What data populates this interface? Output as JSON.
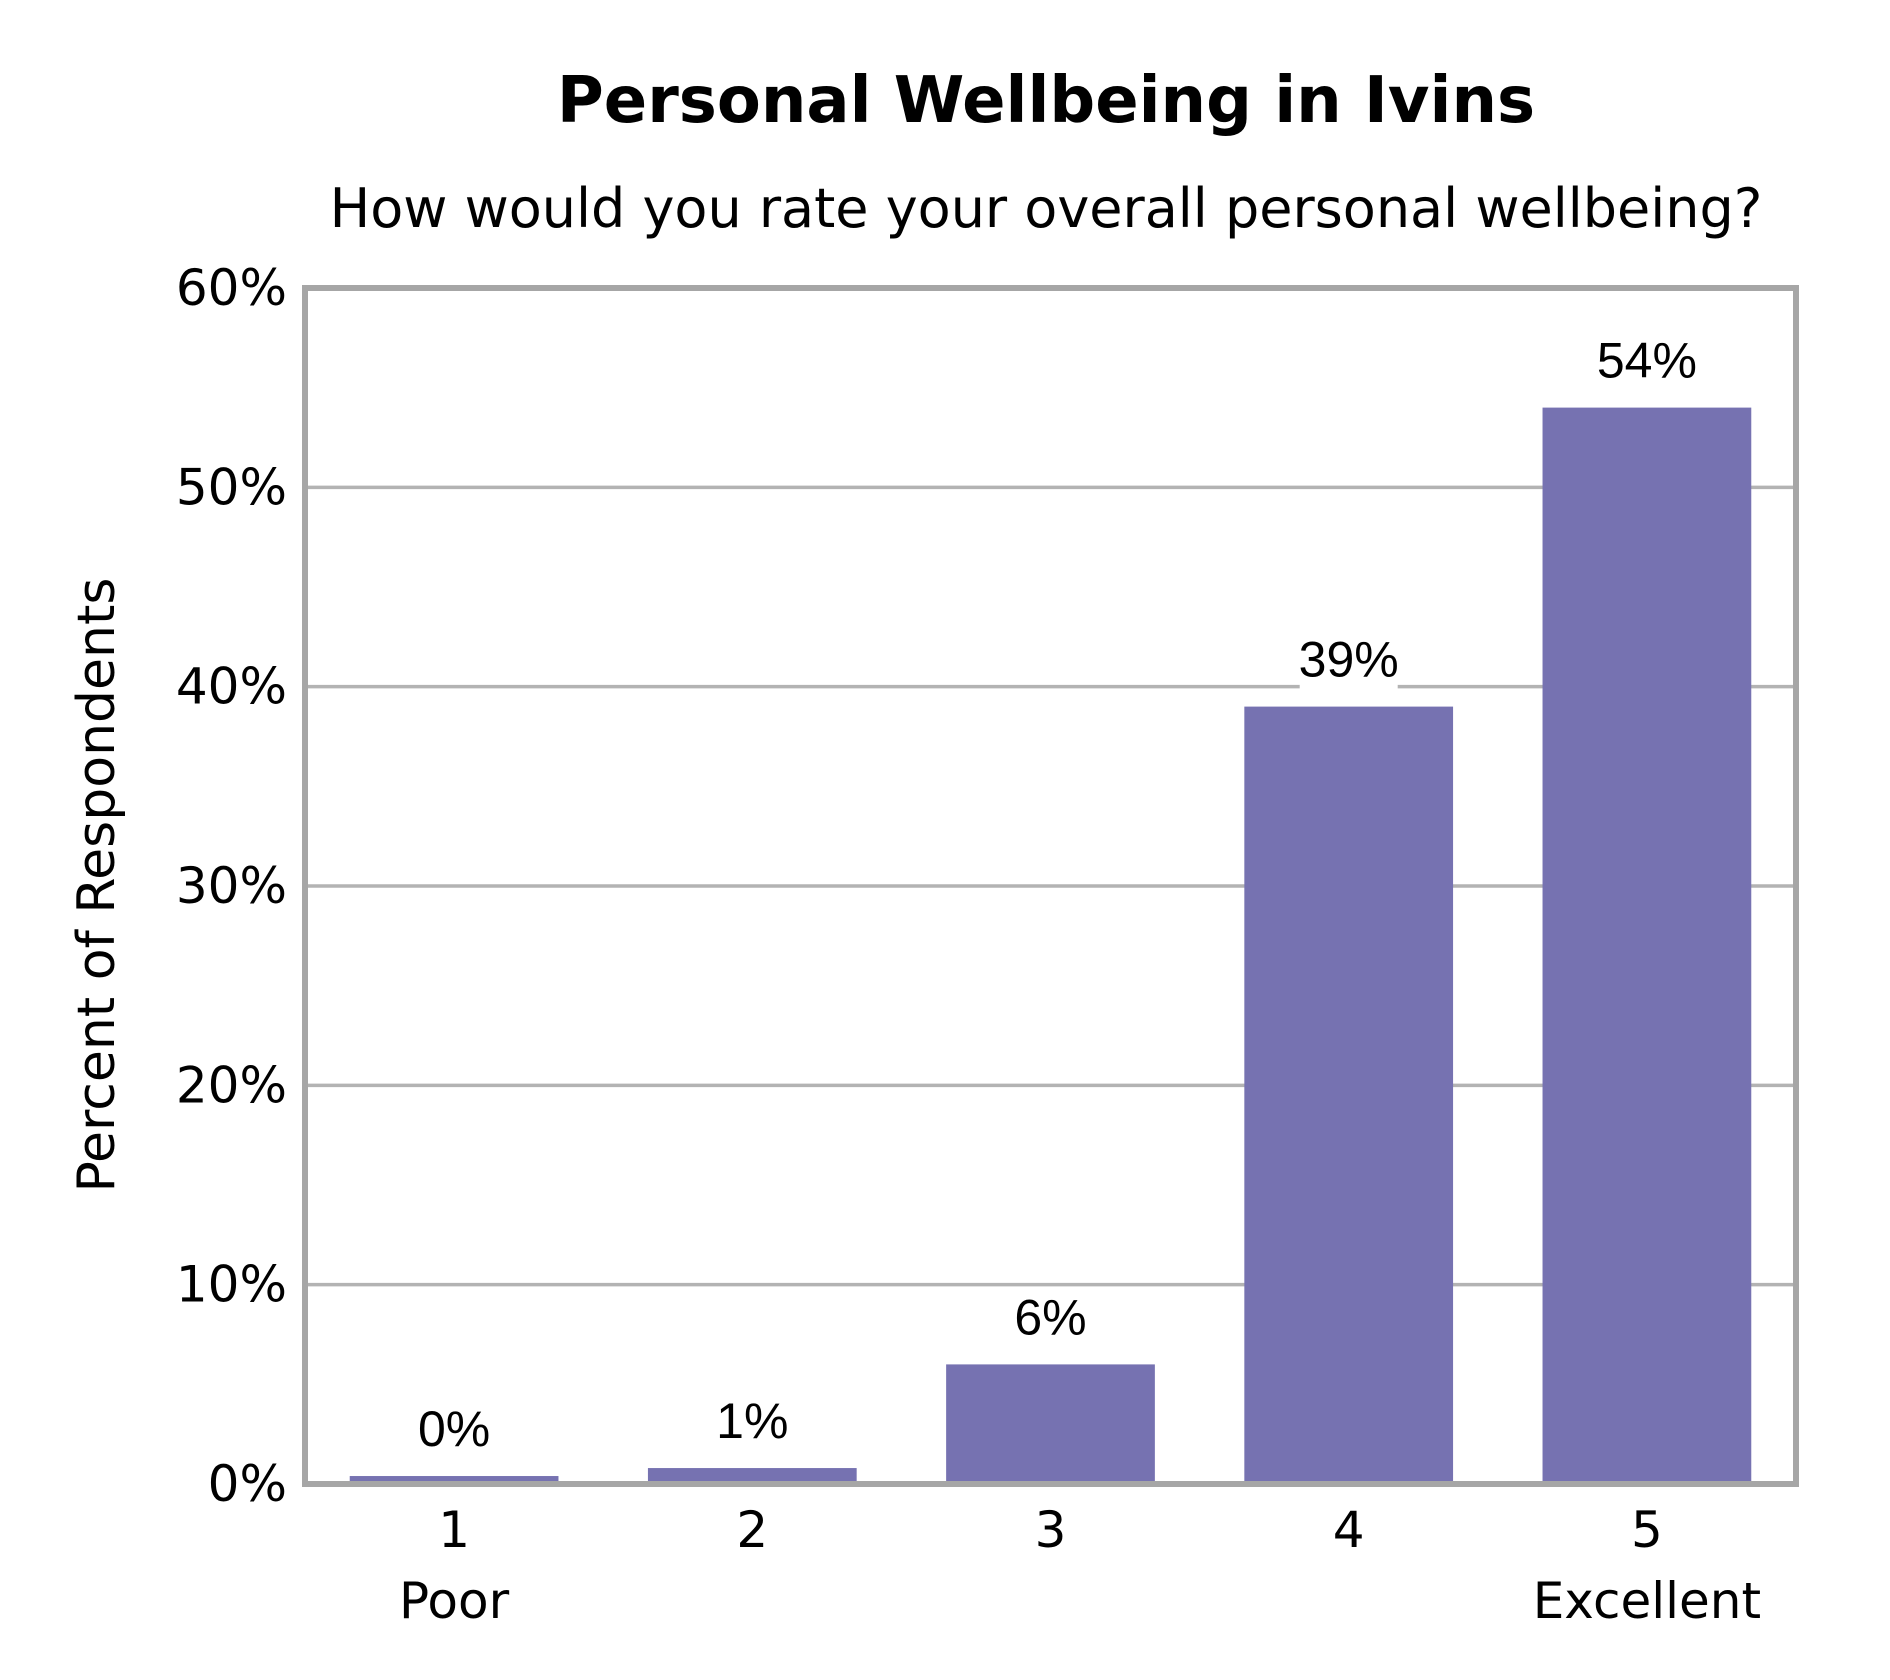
{
  "chart_data": {
    "type": "bar",
    "title": "Personal Wellbeing in Ivins",
    "subtitle": "How would you rate your overall personal wellbeing?",
    "ylabel": "Percent of Respondents",
    "xlabel": "",
    "categories": [
      "1",
      "2",
      "3",
      "4",
      "5"
    ],
    "category_sublabels": [
      "Poor",
      "",
      "",
      "",
      "Excellent"
    ],
    "values": [
      0.4,
      0.8,
      6,
      39,
      54
    ],
    "data_labels": [
      "0%",
      "1%",
      "6%",
      "39%",
      "54%"
    ],
    "ylim": [
      0,
      60
    ],
    "yticks": [
      0,
      10,
      20,
      30,
      40,
      50,
      60
    ],
    "ytick_labels": [
      "0%",
      "10%",
      "20%",
      "30%",
      "40%",
      "50%",
      "60%"
    ],
    "grid": true,
    "bar_color": "#7672b1",
    "grid_color": "#b3b3b3",
    "frame_color": "#a6a6a6"
  }
}
